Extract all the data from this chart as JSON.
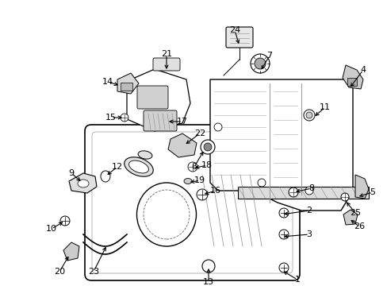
{
  "bg_color": "#ffffff",
  "fig_width": 4.89,
  "fig_height": 3.6,
  "dpi": 100,
  "line_color": "#000000",
  "gray_fill": "#cccccc",
  "light_fill": "#eeeeee"
}
